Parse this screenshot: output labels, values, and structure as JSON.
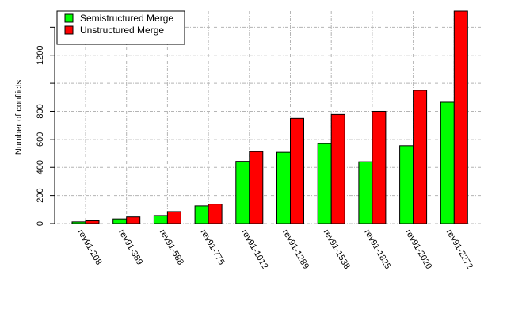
{
  "chart_data": {
    "type": "bar",
    "title": "",
    "xlabel": "",
    "ylabel": "Number of conflicts",
    "categories": [
      "rev91-208",
      "rev91-389",
      "rev91-588",
      "rev91-775",
      "rev91-1012",
      "rev91-1289",
      "rev91-1538",
      "rev91-1825",
      "rev91-2020",
      "rev91-2272"
    ],
    "series": [
      {
        "name": "Semistructured Merge",
        "color": "#00ff00",
        "values": [
          12,
          33,
          57,
          125,
          443,
          508,
          570,
          440,
          555,
          865
        ]
      },
      {
        "name": "Unstructured Merge",
        "color": "#ff0000",
        "values": [
          20,
          47,
          85,
          138,
          513,
          750,
          778,
          800,
          950,
          1515
        ]
      }
    ],
    "ylim": [
      0,
      1515
    ],
    "yticks": [
      0,
      200,
      400,
      600,
      800,
      1200
    ],
    "ytick_labels": [
      "0",
      "200",
      "400",
      "600",
      "800",
      "1200"
    ],
    "yticks_unlabeled": [
      1000,
      1400
    ],
    "grid": true,
    "legend_position": "top-left",
    "x_label_rotation": "rotated clockwise"
  }
}
